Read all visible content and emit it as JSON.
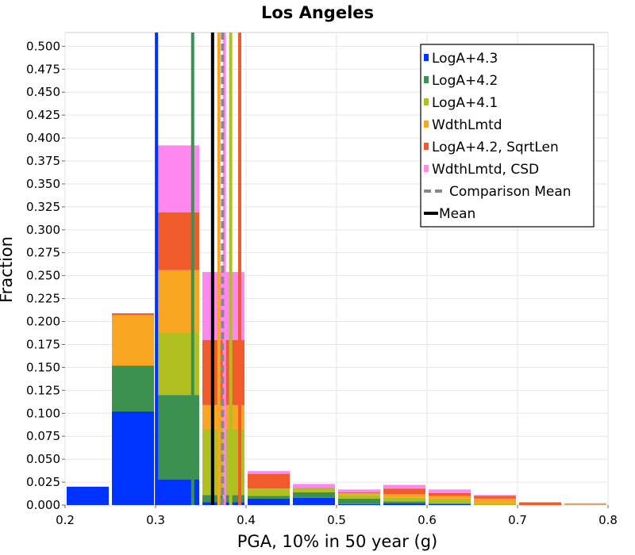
{
  "chart_data": {
    "type": "bar",
    "stacked": true,
    "title": "Los Angeles",
    "xlabel": "PGA, 10% in 50 year (g)",
    "ylabel": "Fraction",
    "xlim": [
      0.2,
      0.8
    ],
    "ylim": [
      0.0,
      0.515
    ],
    "x_ticks": [
      "0.2",
      "0.3",
      "0.4",
      "0.5",
      "0.6",
      "0.7",
      "0.8"
    ],
    "y_ticks": [
      "0.000",
      "0.025",
      "0.050",
      "0.075",
      "0.100",
      "0.125",
      "0.150",
      "0.175",
      "0.200",
      "0.225",
      "0.250",
      "0.275",
      "0.300",
      "0.325",
      "0.350",
      "0.375",
      "0.400",
      "0.425",
      "0.450",
      "0.475",
      "0.500"
    ],
    "bin_width": 0.05,
    "bins": [
      0.2,
      0.25,
      0.3,
      0.35,
      0.4,
      0.45,
      0.5,
      0.55,
      0.6,
      0.65,
      0.7,
      0.75
    ],
    "series": [
      {
        "name": "LogA+4.3",
        "color": "#0033ff",
        "values": [
          0.02,
          0.102,
          0.028,
          0.003,
          0.007,
          0.008,
          0.001,
          0.002,
          0.001,
          0.0,
          0.0,
          0.0
        ]
      },
      {
        "name": "LogA+4.2",
        "color": "#3d9150",
        "values": [
          0.0,
          0.05,
          0.092,
          0.008,
          0.003,
          0.006,
          0.006,
          0.002,
          0.001,
          0.0,
          0.0,
          0.0
        ]
      },
      {
        "name": "LogA+4.1",
        "color": "#b0c020",
        "values": [
          0.0,
          0.0,
          0.068,
          0.072,
          0.008,
          0.005,
          0.004,
          0.004,
          0.005,
          0.002,
          0.0,
          0.0
        ]
      },
      {
        "name": "WdthLmtd",
        "color": "#f8a622",
        "values": [
          0.0,
          0.055,
          0.068,
          0.026,
          0.0,
          0.0,
          0.002,
          0.004,
          0.003,
          0.005,
          0.0,
          0.0
        ]
      },
      {
        "name": "LogA+4.2, SqrtLen",
        "color": "#f15a2a",
        "values": [
          0.0,
          0.002,
          0.063,
          0.071,
          0.016,
          0.0,
          0.001,
          0.006,
          0.003,
          0.003,
          0.003,
          0.0
        ]
      },
      {
        "name": "WdthLmtd, CSD",
        "color": "#ff88f0",
        "values": [
          0.0,
          0.0,
          0.073,
          0.074,
          0.003,
          0.004,
          0.003,
          0.004,
          0.004,
          0.001,
          0.0,
          0.0
        ]
      }
    ],
    "last_bar": {
      "x": 0.75,
      "value": 0.002,
      "color": "#d4a57a"
    },
    "vlines": [
      {
        "x": 0.301,
        "color": "#0033ff",
        "width": 4,
        "dash": ""
      },
      {
        "x": 0.341,
        "color": "#3d9150",
        "width": 4,
        "dash": ""
      },
      {
        "x": 0.383,
        "color": "#b0c020",
        "width": 4,
        "dash": ""
      },
      {
        "x": 0.37,
        "color": "#f8a622",
        "width": 4,
        "dash": ""
      },
      {
        "x": 0.393,
        "color": "#f15a2a",
        "width": 4,
        "dash": ""
      },
      {
        "x": 0.376,
        "color": "#ff88f0",
        "width": 4,
        "dash": ""
      },
      {
        "x": 0.374,
        "color": "#888888",
        "width": 4,
        "dash": "9,5"
      },
      {
        "x": 0.363,
        "color": "#000000",
        "width": 4,
        "dash": ""
      }
    ],
    "legend": {
      "position": "top-right",
      "items": [
        {
          "label": "LogA+4.3",
          "color": "#0033ff",
          "kind": "box"
        },
        {
          "label": "LogA+4.2",
          "color": "#3d9150",
          "kind": "box"
        },
        {
          "label": "LogA+4.1",
          "color": "#b0c020",
          "kind": "box"
        },
        {
          "label": "WdthLmtd",
          "color": "#f8a622",
          "kind": "box"
        },
        {
          "label": "LogA+4.2, SqrtLen",
          "color": "#f15a2a",
          "kind": "box"
        },
        {
          "label": "WdthLmtd, CSD",
          "color": "#ff88f0",
          "kind": "box"
        },
        {
          "label": "Comparison Mean",
          "color": "#888888",
          "kind": "dash"
        },
        {
          "label": "Mean",
          "color": "#000000",
          "kind": "line"
        }
      ]
    }
  }
}
